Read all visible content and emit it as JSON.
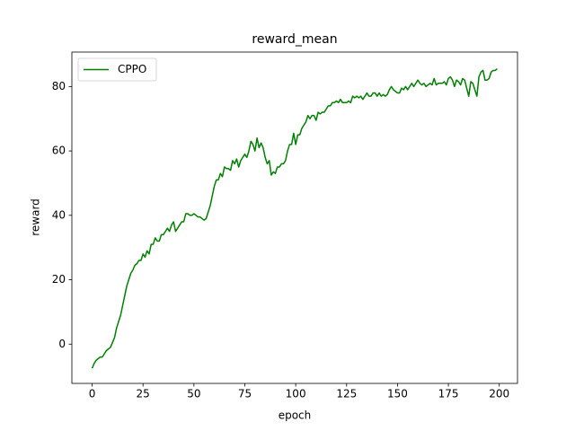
{
  "chart_data": {
    "type": "line",
    "title": "reward_mean",
    "xlabel": "epoch",
    "ylabel": "reward",
    "x": [
      0,
      1,
      2,
      3,
      4,
      5,
      6,
      7,
      8,
      9,
      10,
      11,
      12,
      13,
      14,
      15,
      16,
      17,
      18,
      19,
      20,
      21,
      22,
      23,
      24,
      25,
      26,
      27,
      28,
      29,
      30,
      31,
      32,
      33,
      34,
      35,
      36,
      37,
      38,
      39,
      40,
      41,
      42,
      43,
      44,
      45,
      46,
      47,
      48,
      49,
      50,
      51,
      52,
      53,
      54,
      55,
      56,
      57,
      58,
      59,
      60,
      61,
      62,
      63,
      64,
      65,
      66,
      67,
      68,
      69,
      70,
      71,
      72,
      73,
      74,
      75,
      76,
      77,
      78,
      79,
      80,
      81,
      82,
      83,
      84,
      85,
      86,
      87,
      88,
      89,
      90,
      91,
      92,
      93,
      94,
      95,
      96,
      97,
      98,
      99,
      100,
      101,
      102,
      103,
      104,
      105,
      106,
      107,
      108,
      109,
      110,
      111,
      112,
      113,
      114,
      115,
      116,
      117,
      118,
      119,
      120,
      121,
      122,
      123,
      124,
      125,
      126,
      127,
      128,
      129,
      130,
      131,
      132,
      133,
      134,
      135,
      136,
      137,
      138,
      139,
      140,
      141,
      142,
      143,
      144,
      145,
      146,
      147,
      148,
      149,
      150,
      151,
      152,
      153,
      154,
      155,
      156,
      157,
      158,
      159,
      160,
      161,
      162,
      163,
      164,
      165,
      166,
      167,
      168,
      169,
      170,
      171,
      172,
      173,
      174,
      175,
      176,
      177,
      178,
      179,
      180,
      181,
      182,
      183,
      184,
      185,
      186,
      187,
      188,
      189,
      190,
      191,
      192,
      193,
      194,
      195,
      196,
      197,
      198,
      199
    ],
    "series": [
      {
        "name": "CPPO",
        "color": "#008000",
        "values": [
          -7.5,
          -6,
          -5,
          -4.5,
          -4,
          -4,
          -3,
          -2,
          -1.5,
          -1,
          0.5,
          2,
          5,
          7,
          9,
          12,
          15,
          18,
          20,
          22,
          23,
          24.5,
          25,
          26,
          26,
          28,
          27,
          29,
          28,
          31,
          31,
          33,
          32,
          32,
          34,
          34,
          35,
          36,
          35,
          37,
          38,
          35,
          36,
          37,
          38,
          38,
          40.5,
          40.5,
          40,
          40,
          40.5,
          40,
          39.5,
          39.5,
          39,
          38.5,
          39,
          41,
          43,
          46,
          49,
          51,
          51,
          53,
          52,
          55,
          54.5,
          54.5,
          54,
          57,
          56,
          57.5,
          55,
          57,
          58,
          59,
          58,
          60,
          63,
          62,
          60,
          64,
          61,
          62.5,
          61,
          58,
          56,
          57,
          52.5,
          53.5,
          53,
          55,
          55,
          56,
          56,
          57,
          60,
          62,
          62,
          65.5,
          62,
          65,
          65,
          67,
          68,
          69,
          71,
          70,
          71,
          71,
          69.5,
          72,
          71.5,
          72,
          72,
          73,
          74,
          74,
          75,
          75,
          75.5,
          75,
          76,
          75,
          75,
          75,
          75.5,
          75,
          77,
          76.5,
          77,
          76.5,
          77,
          76,
          77,
          78,
          77,
          77,
          78,
          78,
          77,
          78,
          77,
          77.5,
          77,
          77.5,
          79,
          80,
          79,
          78.5,
          78,
          78,
          79.5,
          79,
          80,
          79,
          80,
          81,
          80,
          81,
          82,
          81,
          80.5,
          81,
          80,
          80.5,
          81,
          80.5,
          82.5,
          80.5,
          81,
          81,
          81,
          81.5,
          80.5,
          82.5,
          83,
          82,
          80,
          82,
          81.5,
          80.5,
          82.5,
          82,
          79.5,
          77,
          81.5,
          81,
          79,
          77,
          83,
          84.5,
          85,
          82,
          82,
          82.5,
          84.5,
          85,
          85,
          85.5
        ]
      }
    ],
    "xlim": [
      -9.95,
      208.95
    ],
    "ylim": [
      -12.2,
      90.7
    ],
    "xticks": [
      0,
      25,
      50,
      75,
      100,
      125,
      150,
      175,
      200
    ],
    "yticks": [
      0,
      20,
      40,
      60,
      80
    ],
    "legend": "upper left"
  }
}
